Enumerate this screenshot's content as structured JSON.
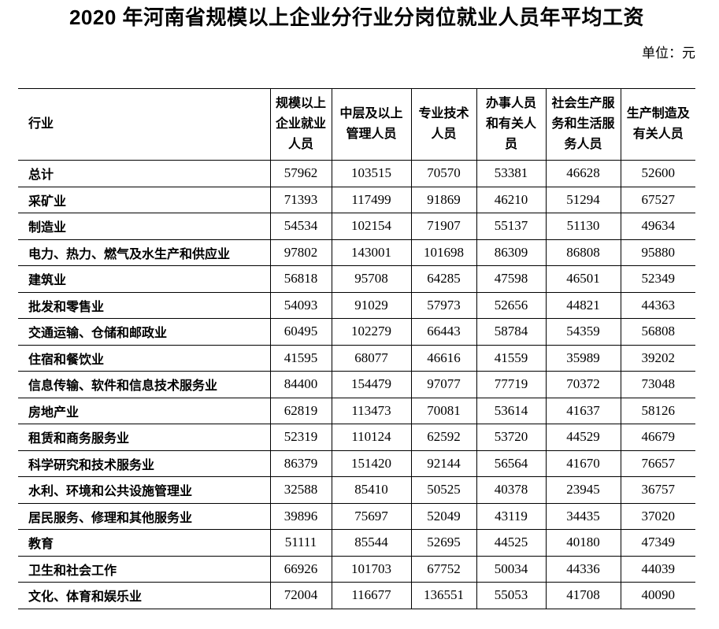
{
  "page": {
    "title": "2020 年河南省规模以上企业分行业分岗位就业人员年平均工资",
    "unit_label": "单位：元"
  },
  "table": {
    "industry_header": "行业",
    "columns": [
      "规模以上企业就业人员",
      "中层及以上管理人员",
      "专业技术人员",
      "办事人员和有关人员",
      "社会生产服务和生活服务人员",
      "生产制造及有关人员"
    ],
    "rows": [
      {
        "industry": "总计",
        "values": [
          57962,
          103515,
          70570,
          53381,
          46628,
          52600
        ]
      },
      {
        "industry": "采矿业",
        "values": [
          71393,
          117499,
          91869,
          46210,
          51294,
          67527
        ]
      },
      {
        "industry": "制造业",
        "values": [
          54534,
          102154,
          71907,
          55137,
          51130,
          49634
        ]
      },
      {
        "industry": "电力、热力、燃气及水生产和供应业",
        "values": [
          97802,
          143001,
          101698,
          86309,
          86808,
          95880
        ]
      },
      {
        "industry": "建筑业",
        "values": [
          56818,
          95708,
          64285,
          47598,
          46501,
          52349
        ]
      },
      {
        "industry": "批发和零售业",
        "values": [
          54093,
          91029,
          57973,
          52656,
          44821,
          44363
        ]
      },
      {
        "industry": "交通运输、仓储和邮政业",
        "values": [
          60495,
          102279,
          66443,
          58784,
          54359,
          56808
        ]
      },
      {
        "industry": "住宿和餐饮业",
        "values": [
          41595,
          68077,
          46616,
          41559,
          35989,
          39202
        ]
      },
      {
        "industry": "信息传输、软件和信息技术服务业",
        "values": [
          84400,
          154479,
          97077,
          77719,
          70372,
          73048
        ]
      },
      {
        "industry": "房地产业",
        "values": [
          62819,
          113473,
          70081,
          53614,
          41637,
          58126
        ]
      },
      {
        "industry": "租赁和商务服务业",
        "values": [
          52319,
          110124,
          62592,
          53720,
          44529,
          46679
        ]
      },
      {
        "industry": "科学研究和技术服务业",
        "values": [
          86379,
          151420,
          92144,
          56564,
          41670,
          76657
        ]
      },
      {
        "industry": "水利、环境和公共设施管理业",
        "values": [
          32588,
          85410,
          50525,
          40378,
          23945,
          36757
        ]
      },
      {
        "industry": "居民服务、修理和其他服务业",
        "values": [
          39896,
          75697,
          52049,
          43119,
          34435,
          37020
        ]
      },
      {
        "industry": "教育",
        "values": [
          51111,
          85544,
          52695,
          44525,
          40180,
          47349
        ]
      },
      {
        "industry": "卫生和社会工作",
        "values": [
          66926,
          101703,
          67752,
          50034,
          44336,
          44039
        ]
      },
      {
        "industry": "文化、体育和娱乐业",
        "values": [
          72004,
          116677,
          136551,
          55053,
          41708,
          40090
        ]
      }
    ]
  }
}
